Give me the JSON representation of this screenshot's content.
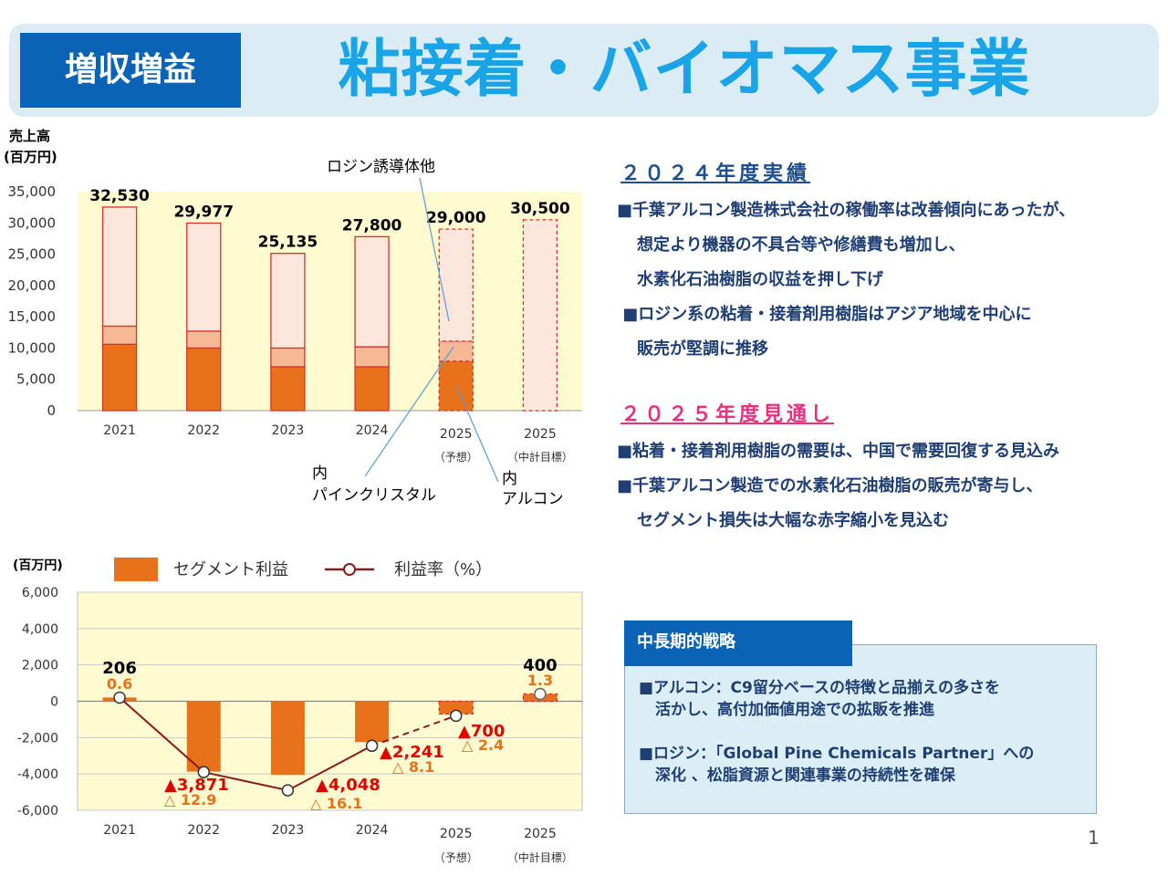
{
  "header": {
    "badge": "増収増益",
    "title": "粘接着・バイオマス事業"
  },
  "chart_data": [
    {
      "type": "bar",
      "ylabel": "売上高\n(百万円)",
      "categories": [
        "2021",
        "2022",
        "2023",
        "2024",
        "2025",
        "2025"
      ],
      "category_notes": [
        "",
        "",
        "",
        "",
        "（予想）",
        "（中計目標）"
      ],
      "ylim": [
        0,
        35000
      ],
      "yticks": [
        0,
        5000,
        10000,
        15000,
        20000,
        25000,
        30000,
        35000
      ],
      "ytick_labels": [
        "0",
        "5,000",
        "10,000",
        "15,000",
        "20,000",
        "25,000",
        "30,000",
        "35,000"
      ],
      "totals": [
        32530,
        29977,
        25135,
        27800,
        29000,
        30500
      ],
      "total_labels": [
        "32,530",
        "29,977",
        "25,135",
        "27,800",
        "29,000",
        "30,500"
      ],
      "series": [
        {
          "name": "アルコン",
          "values": [
            10600,
            10000,
            7000,
            7000,
            7900,
            null
          ],
          "color": "#e8711c"
        },
        {
          "name": "パインクリスタル",
          "values": [
            2900,
            2700,
            3000,
            3200,
            3200,
            null
          ],
          "color": "#f6b996"
        },
        {
          "name": "ロジン誘導体他",
          "values": [
            19030,
            17277,
            15135,
            17600,
            17900,
            30500
          ],
          "color": "#fde6dc"
        }
      ],
      "annotations": {
        "rosin": "ロジン誘導体他",
        "pine_prefix": "内",
        "pine": "パインクリスタル",
        "arakawa_prefix": "内",
        "arakawa": "アルコン"
      },
      "grid": false,
      "background": "#fffbd1"
    },
    {
      "type": "bar",
      "ylabel": "(百万円)",
      "categories": [
        "2021",
        "2022",
        "2023",
        "2024",
        "2025",
        "2025"
      ],
      "category_notes": [
        "",
        "",
        "",
        "",
        "（予想）",
        "（中計目標）"
      ],
      "ylim": [
        -6000,
        6000
      ],
      "yticks": [
        -6000,
        -4000,
        -2000,
        0,
        2000,
        4000,
        6000
      ],
      "ytick_labels": [
        "-6,000",
        "-4,000",
        "-2,000",
        "0",
        "2,000",
        "4,000",
        "6,000"
      ],
      "legend": {
        "bar": "セグメント利益",
        "line": "利益率（%）",
        "position": "top"
      },
      "profit": [
        206,
        -3871,
        -4048,
        -2241,
        -700,
        400
      ],
      "profit_labels": [
        "206",
        "▲3,871",
        "",
        "▲2,241",
        "▲700",
        "400"
      ],
      "profit_label_2023": "▲4,048",
      "margin_line_y": [
        200,
        -3900,
        -4900,
        -2450,
        -800,
        400
      ],
      "margin_labels": [
        "0.6",
        "△ 12.9",
        "△ 16.1",
        "△ 8.1",
        "△ 2.4",
        "1.3"
      ],
      "grid": true,
      "background": "#fffbd1"
    }
  ],
  "text_panel": {
    "result_head": "２０２４年度実績",
    "result_lines": [
      "■千葉アルコン製造株式会社の稼働率は改善傾向にあったが、",
      "想定より機器の不具合等や修繕費も増加し、",
      "水素化石油樹脂の収益を押し下げ",
      " ■ロジン系の粘着・接着剤用樹脂はアジア地域を中心に",
      "販売が堅調に推移"
    ],
    "outlook_head": "２０２５年度見通し",
    "outlook_lines": [
      "■粘着・接着剤用樹脂の需要は、中国で需要回復する見込み",
      "■千葉アルコン製造での水素化石油樹脂の販売が寄与し、",
      "セグメント損失は大幅な赤字縮小を見込む"
    ]
  },
  "strategy": {
    "tab": "中長期的戦略",
    "lines": [
      "■アルコン：C9留分ベースの特徴と品揃えの多さを",
      "活かし、高付加価値用途での拡販を推進",
      "■ロジン：「Global Pine Chemicals Partner」への",
      "深化 、松脂資源と関連事業の持続性を確保"
    ]
  },
  "page_number": "1",
  "colors": {
    "badge": "#0b63b6",
    "title": "#1aa4e8",
    "loss_label": "#e00000",
    "margin_label": "#e8711c",
    "line": "#8b1a1a",
    "outlook_head": "#e8307d"
  }
}
